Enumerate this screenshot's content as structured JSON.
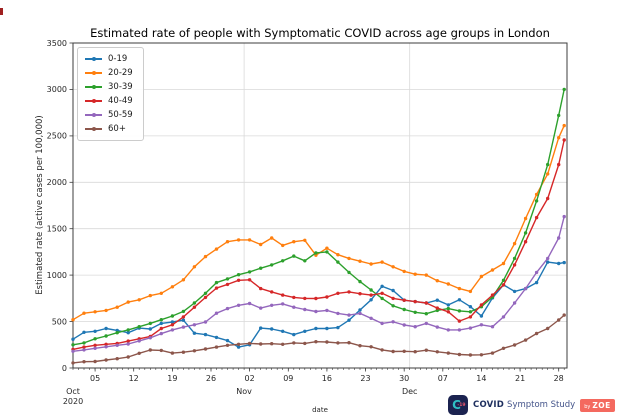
{
  "chart_data": {
    "type": "line",
    "title": "Estimated rate of people with Symptomatic COVID across age groups in London",
    "xlabel": "date",
    "ylabel": "Estimated rate (active cases per 100,000)",
    "ylim": [
      0,
      3500
    ],
    "xlim_days": [
      0,
      89.5
    ],
    "grid": true,
    "legend_position": "upper left",
    "y_ticks": [
      0,
      500,
      1000,
      1500,
      2000,
      2500,
      3000,
      3500
    ],
    "x_ticks": [
      {
        "day": 4,
        "label": "05"
      },
      {
        "day": 11,
        "label": "12"
      },
      {
        "day": 18,
        "label": "19"
      },
      {
        "day": 25,
        "label": "26"
      },
      {
        "day": 32,
        "label": "02"
      },
      {
        "day": 39,
        "label": "09"
      },
      {
        "day": 46,
        "label": "16"
      },
      {
        "day": 53,
        "label": "23"
      },
      {
        "day": 60,
        "label": "30"
      },
      {
        "day": 67,
        "label": "07"
      },
      {
        "day": 74,
        "label": "14"
      },
      {
        "day": 81,
        "label": "21"
      },
      {
        "day": 88,
        "label": "28"
      }
    ],
    "month_labels": [
      {
        "day": 0,
        "label": "Oct",
        "sub": "2020"
      },
      {
        "day": 31,
        "label": "Nov",
        "sub": ""
      },
      {
        "day": 61,
        "label": "Dec",
        "sub": ""
      }
    ],
    "month_gridline_days": [
      31,
      61
    ],
    "x_days": [
      0,
      2,
      4,
      6,
      8,
      10,
      12,
      14,
      16,
      18,
      20,
      22,
      24,
      26,
      28,
      30,
      32,
      34,
      36,
      38,
      40,
      42,
      44,
      46,
      48,
      50,
      52,
      54,
      56,
      58,
      60,
      62,
      64,
      66,
      68,
      70,
      72,
      74,
      76,
      78,
      80,
      82,
      84,
      86,
      88,
      89
    ],
    "series": [
      {
        "name": "0-19",
        "color": "#1f77b4",
        "values": [
          310,
          385,
          395,
          425,
          405,
          380,
          430,
          420,
          480,
          495,
          515,
          375,
          360,
          330,
          295,
          225,
          250,
          430,
          420,
          395,
          360,
          395,
          425,
          425,
          435,
          515,
          625,
          735,
          880,
          835,
          730,
          715,
          700,
          730,
          680,
          735,
          660,
          560,
          755,
          895,
          825,
          855,
          920,
          1140,
          1125,
          1135
        ]
      },
      {
        "name": "20-29",
        "color": "#ff7f0e",
        "values": [
          520,
          590,
          605,
          620,
          655,
          710,
          735,
          780,
          805,
          875,
          950,
          1090,
          1200,
          1280,
          1360,
          1380,
          1380,
          1330,
          1400,
          1320,
          1360,
          1375,
          1215,
          1290,
          1220,
          1180,
          1150,
          1120,
          1140,
          1090,
          1040,
          1010,
          1000,
          940,
          905,
          855,
          825,
          985,
          1055,
          1125,
          1340,
          1610,
          1870,
          2090,
          2480,
          2610
        ]
      },
      {
        "name": "30-39",
        "color": "#2ca02c",
        "values": [
          250,
          270,
          315,
          345,
          380,
          410,
          445,
          480,
          520,
          560,
          610,
          700,
          805,
          920,
          960,
          1005,
          1035,
          1075,
          1110,
          1155,
          1205,
          1155,
          1240,
          1250,
          1140,
          1030,
          930,
          840,
          750,
          670,
          630,
          600,
          585,
          620,
          640,
          615,
          605,
          660,
          765,
          945,
          1180,
          1455,
          1800,
          2190,
          2720,
          3000
        ]
      },
      {
        "name": "40-49",
        "color": "#d62728",
        "values": [
          200,
          225,
          245,
          255,
          265,
          290,
          315,
          340,
          425,
          465,
          550,
          655,
          760,
          860,
          900,
          945,
          950,
          855,
          820,
          785,
          760,
          750,
          748,
          765,
          805,
          820,
          800,
          785,
          805,
          750,
          730,
          715,
          700,
          645,
          605,
          505,
          550,
          680,
          785,
          895,
          1110,
          1360,
          1620,
          1825,
          2190,
          2455
        ]
      },
      {
        "name": "50-59",
        "color": "#9467bd",
        "values": [
          180,
          195,
          212,
          228,
          245,
          258,
          292,
          325,
          370,
          410,
          440,
          465,
          495,
          590,
          640,
          675,
          695,
          645,
          675,
          690,
          655,
          630,
          608,
          620,
          588,
          570,
          588,
          535,
          480,
          498,
          463,
          445,
          480,
          440,
          410,
          410,
          430,
          465,
          445,
          550,
          700,
          855,
          1030,
          1180,
          1400,
          1630
        ]
      },
      {
        "name": "60+",
        "color": "#8c564b",
        "values": [
          55,
          68,
          70,
          86,
          100,
          118,
          158,
          194,
          190,
          160,
          170,
          185,
          205,
          225,
          245,
          255,
          265,
          258,
          262,
          255,
          270,
          265,
          283,
          280,
          270,
          272,
          240,
          228,
          195,
          178,
          180,
          176,
          192,
          175,
          160,
          145,
          140,
          142,
          160,
          212,
          248,
          300,
          372,
          425,
          517,
          570
        ]
      }
    ]
  },
  "branding": {
    "icon_letter": "C",
    "icon_sub": "-19",
    "name_bold": "COVID",
    "name_rest": "Symptom Study",
    "badge_by": "by",
    "badge_text": "ZOE"
  }
}
